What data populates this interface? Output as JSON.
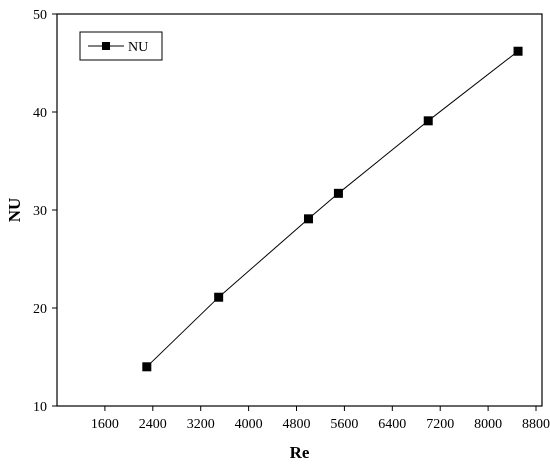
{
  "chart_data": {
    "type": "line",
    "title": "",
    "xlabel": "Re",
    "ylabel": "NU",
    "xlim": [
      800,
      8900
    ],
    "ylim": [
      10,
      50
    ],
    "xticks": [
      1600,
      2400,
      3200,
      4000,
      4800,
      5600,
      6400,
      7200,
      8000,
      8800
    ],
    "yticks": [
      10,
      20,
      30,
      40,
      50
    ],
    "grid": false,
    "legend": "top-left",
    "series": [
      {
        "name": "NU",
        "marker": "square",
        "color": "#000000",
        "x": [
          2300,
          3500,
          5000,
          5500,
          7000,
          8500
        ],
        "y": [
          14.0,
          21.1,
          29.1,
          31.7,
          39.1,
          46.2
        ]
      }
    ]
  }
}
